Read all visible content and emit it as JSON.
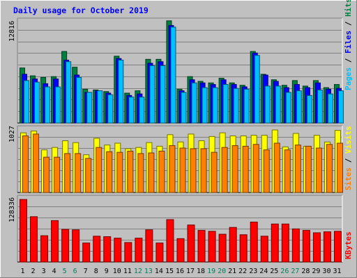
{
  "chart_data": [
    {
      "type": "bar",
      "title": "Daily usage for October 2019",
      "panel": "top",
      "ymax_label": "12816",
      "legend": [
        "Pages",
        "Files",
        "Hits"
      ],
      "categories": [
        "1",
        "2",
        "3",
        "4",
        "5",
        "6",
        "7",
        "8",
        "9",
        "10",
        "11",
        "12",
        "13",
        "14",
        "15",
        "16",
        "17",
        "18",
        "19",
        "20",
        "21",
        "22",
        "23",
        "24",
        "25",
        "26",
        "27",
        "28",
        "29",
        "30",
        "31"
      ],
      "weekend_days": [
        "5",
        "6",
        "12",
        "13",
        "19",
        "20",
        "26",
        "27"
      ],
      "ylim": [
        0,
        12816
      ],
      "series": [
        {
          "name": "Hits",
          "color": "#008040",
          "values": [
            7000,
            6000,
            5800,
            5900,
            9100,
            7100,
            4300,
            4200,
            4000,
            8500,
            3800,
            4100,
            8100,
            8100,
            13000,
            4300,
            5900,
            5300,
            5100,
            5700,
            5100,
            4800,
            9100,
            6200,
            5500,
            4800,
            5400,
            4700,
            5400,
            4500,
            4900
          ]
        },
        {
          "name": "Files",
          "color": "#0000ff",
          "values": [
            6200,
            5600,
            5000,
            5600,
            8000,
            6100,
            3900,
            4100,
            3800,
            8200,
            3500,
            3700,
            7600,
            7800,
            12400,
            4100,
            5500,
            5100,
            4900,
            5500,
            4900,
            4600,
            8900,
            6100,
            5300,
            4500,
            4900,
            4500,
            5100,
            4300,
            4400
          ]
        },
        {
          "name": "Pages",
          "color": "#00c0ff",
          "values": [
            5400,
            5200,
            4600,
            4600,
            7800,
            5800,
            3900,
            4100,
            3600,
            8000,
            3300,
            3300,
            7300,
            7300,
            12200,
            3900,
            5100,
            4500,
            4500,
            4900,
            4400,
            4300,
            8600,
            4700,
            4700,
            3900,
            4100,
            3500,
            4200,
            3700,
            4100
          ]
        }
      ]
    },
    {
      "type": "bar",
      "panel": "middle",
      "ymax_label": "1027",
      "legend": [
        "Sites",
        "Visits"
      ],
      "categories": [
        "1",
        "2",
        "3",
        "4",
        "5",
        "6",
        "7",
        "8",
        "9",
        "10",
        "11",
        "12",
        "13",
        "14",
        "15",
        "16",
        "17",
        "18",
        "19",
        "20",
        "21",
        "22",
        "23",
        "24",
        "25",
        "26",
        "27",
        "28",
        "29",
        "30",
        "31"
      ],
      "ylim": [
        0,
        1027
      ],
      "series": [
        {
          "name": "Visits",
          "color": "#ffff00",
          "values": [
            980,
            1010,
            700,
            740,
            850,
            820,
            620,
            890,
            780,
            810,
            720,
            740,
            820,
            760,
            950,
            830,
            960,
            850,
            920,
            980,
            930,
            930,
            940,
            940,
            1027,
            750,
            970,
            760,
            940,
            830,
            1020
          ]
        },
        {
          "name": "Sites",
          "color": "#ff8000",
          "values": [
            930,
            960,
            580,
            580,
            640,
            640,
            560,
            740,
            670,
            660,
            680,
            640,
            650,
            680,
            770,
            730,
            720,
            720,
            660,
            740,
            770,
            760,
            790,
            700,
            810,
            700,
            780,
            760,
            730,
            790,
            810
          ]
        }
      ]
    },
    {
      "type": "bar",
      "panel": "bottom",
      "ymax_label": "128336",
      "legend": [
        "KBytes"
      ],
      "categories": [
        "1",
        "2",
        "3",
        "4",
        "5",
        "6",
        "7",
        "8",
        "9",
        "10",
        "11",
        "12",
        "13",
        "14",
        "15",
        "16",
        "17",
        "18",
        "19",
        "20",
        "21",
        "22",
        "23",
        "24",
        "25",
        "26",
        "27",
        "28",
        "29",
        "30",
        "31"
      ],
      "ylim": [
        0,
        128336
      ],
      "series": [
        {
          "name": "KBytes",
          "color": "#ff0000",
          "values": [
            128336,
            93000,
            54000,
            85000,
            67000,
            66000,
            39000,
            53000,
            52000,
            49000,
            40000,
            49000,
            66000,
            39000,
            87000,
            48000,
            76000,
            65000,
            63000,
            57000,
            71000,
            56000,
            82000,
            53000,
            78000,
            78000,
            68000,
            65000,
            60000,
            62000,
            63000
          ]
        }
      ]
    }
  ]
}
